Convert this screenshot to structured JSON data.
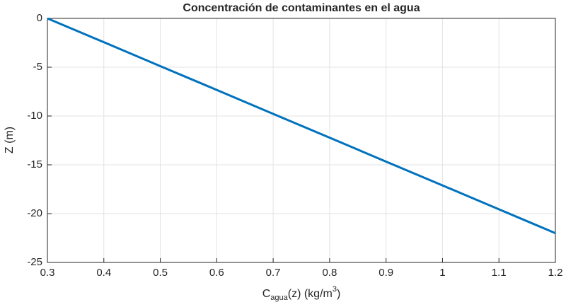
{
  "chart_data": {
    "type": "line",
    "title": "Concentración de contaminantes en el agua",
    "xlabel": [
      "C",
      "agua",
      "(z)  (kg/m",
      "3",
      ")"
    ],
    "ylabel": "Z (m)",
    "x": [
      0.3,
      0.4,
      0.5,
      0.6,
      0.7,
      0.8,
      0.9,
      1.0,
      1.1,
      1.2
    ],
    "series": [
      {
        "name": "C",
        "color": "#0072bd",
        "values": [
          0,
          -2.44,
          -4.89,
          -7.33,
          -9.78,
          -12.22,
          -14.67,
          -17.11,
          -19.56,
          -22
        ]
      }
    ],
    "xlim": [
      0.3,
      1.2
    ],
    "xticks": [
      0.3,
      0.4,
      0.5,
      0.6,
      0.7,
      0.8,
      0.9,
      1,
      1.1,
      1.2
    ],
    "ylim": [
      -25,
      0
    ],
    "yticks": [
      -25,
      -20,
      -15,
      -10,
      -5,
      0
    ],
    "grid": true
  }
}
